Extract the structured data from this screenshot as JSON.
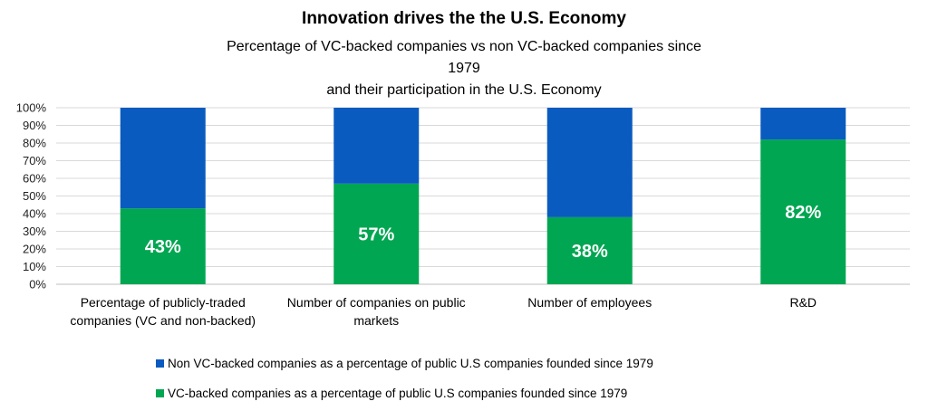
{
  "chart_data": {
    "type": "bar",
    "stacked": true,
    "title": "Innovation drives the the U.S. Economy",
    "subtitle_lines": [
      "Percentage of VC-backed companies vs non VC-backed companies since 1979",
      "and their participation in the U.S. Economy"
    ],
    "categories": [
      [
        "Percentage of publicly-traded",
        "companies (VC and non-backed)"
      ],
      [
        "Number of companies on public",
        "markets"
      ],
      [
        "Number of employees"
      ],
      [
        "R&D"
      ]
    ],
    "series": [
      {
        "name": "VC-backed companies as a percentage of public U.S companies founded since 1979",
        "color": "#00A651",
        "values": [
          43,
          57,
          38,
          82
        ],
        "labels": [
          "43%",
          "57%",
          "38%",
          "82%"
        ]
      },
      {
        "name": "Non VC-backed companies as a percentage of public U.S companies founded since 1979",
        "color": "#0A5BBF",
        "values": [
          57,
          43,
          62,
          18
        ]
      }
    ],
    "ylim": [
      0,
      100
    ],
    "yticks": [
      "0%",
      "10%",
      "20%",
      "30%",
      "40%",
      "50%",
      "60%",
      "70%",
      "80%",
      "90%",
      "100%"
    ],
    "grid": true,
    "legend": [
      {
        "label": "Non VC-backed companies as a percentage of public U.S companies founded since 1979",
        "color": "#0A5BBF"
      },
      {
        "label": "VC-backed companies as a percentage of public U.S companies founded since 1979",
        "color": "#00A651"
      }
    ],
    "legend_position": "bottom"
  }
}
